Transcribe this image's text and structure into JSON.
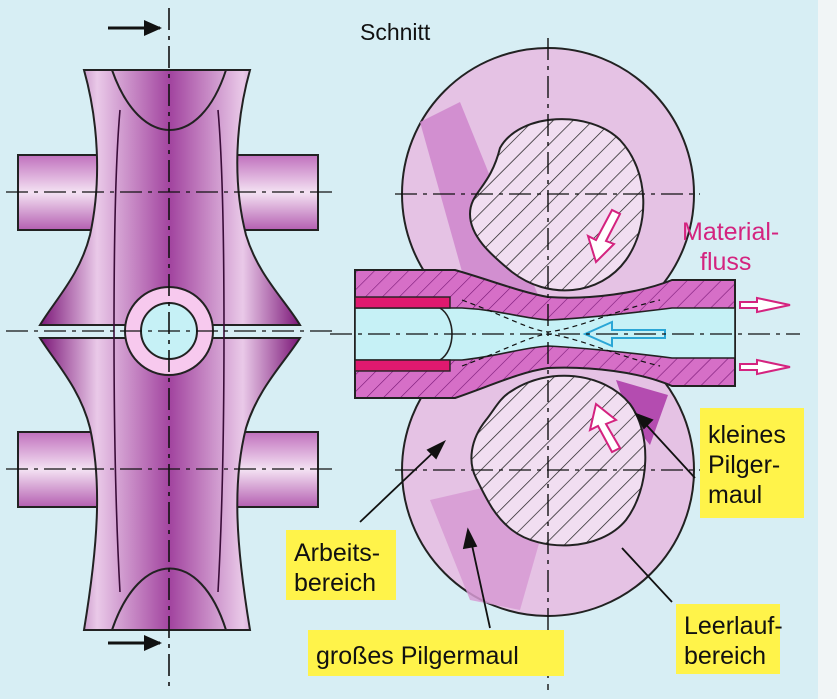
{
  "labels": {
    "section": "Schnitt",
    "material_flow": [
      "Material-",
      "fluss"
    ],
    "small_mouth": [
      "kleines",
      "Pilger-",
      "maul"
    ],
    "work_area": [
      "Arbeits-",
      "bereich"
    ],
    "large_mouth": "großes Pilgermaul",
    "idle_area": [
      "Leerlauf-",
      "bereich"
    ]
  },
  "colors": {
    "background": "#d7eef4",
    "roll_dark": "#8a1f86",
    "roll_light": "#e8c5e6",
    "roll_mid": "#c46fc0",
    "hatch_fill": "#f1def1",
    "label_box": "#fff34a",
    "accent_magenta": "#d4237f",
    "tube_cyan": "#c6f1f6",
    "arrow_blue": "#2aa6d6"
  }
}
